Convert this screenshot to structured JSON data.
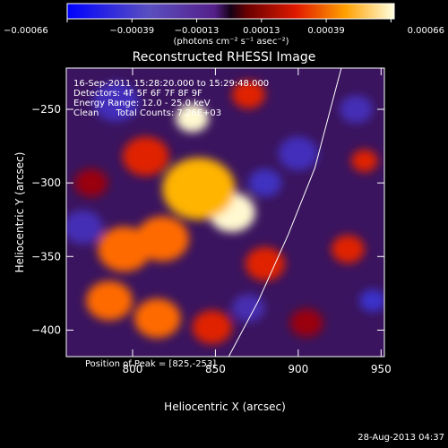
{
  "chart_data": {
    "type": "heatmap",
    "title": "Reconstructed RHESSI Image",
    "xlabel": "Heliocentric X (arcsec)",
    "ylabel": "Heliocentric Y (arcsec)",
    "xlim": [
      760,
      952
    ],
    "ylim": [
      -418,
      -222
    ],
    "xticks": [
      800,
      850,
      900,
      950
    ],
    "yticks": [
      -250,
      -300,
      -350,
      -400
    ],
    "colorbar": {
      "ticks": [
        "-0.00066",
        "-0.00039",
        "-0.00013",
        "0.00013",
        "0.00039",
        "0.00066"
      ],
      "unit_label": "(photons cm⁻² s⁻¹ asec⁻²)",
      "range": [
        -0.00066,
        0.00066
      ]
    },
    "annotations": [
      "16-Sep-2011 15:28:20.000 to 15:29:48.000",
      "Detectors: 4F 5F 6F 7F 8F 9F",
      "Energy Range: 12.0 - 25.0 keV",
      "Clean      Total Counts: 7.26E+03"
    ],
    "peak_label": "Position of Peak = [825,-253]",
    "peak": [
      825,
      -253
    ],
    "limb_points": [
      [
        858,
        -418
      ],
      [
        876,
        -380
      ],
      [
        894,
        -335
      ],
      [
        910,
        -290
      ],
      [
        926,
        -222
      ]
    ],
    "blobs": [
      {
        "x": 860,
        "y": -320,
        "value": 1.0,
        "r": 14
      },
      {
        "x": 836,
        "y": -256,
        "value": 0.95,
        "r": 10
      },
      {
        "x": 840,
        "y": -304,
        "value": 0.75,
        "r": 22
      },
      {
        "x": 808,
        "y": -282,
        "value": 0.55,
        "r": 14
      },
      {
        "x": 795,
        "y": -345,
        "value": 0.7,
        "r": 16
      },
      {
        "x": 818,
        "y": -338,
        "value": 0.6,
        "r": 16
      },
      {
        "x": 786,
        "y": -380,
        "value": 0.6,
        "r": 14
      },
      {
        "x": 815,
        "y": -392,
        "value": 0.7,
        "r": 14
      },
      {
        "x": 848,
        "y": -398,
        "value": 0.55,
        "r": 12
      },
      {
        "x": 880,
        "y": -355,
        "value": 0.45,
        "r": 12
      },
      {
        "x": 930,
        "y": -345,
        "value": 0.45,
        "r": 10
      },
      {
        "x": 940,
        "y": -285,
        "value": 0.55,
        "r": 8
      },
      {
        "x": 870,
        "y": -240,
        "value": 0.5,
        "r": 10
      },
      {
        "x": 775,
        "y": -300,
        "value": 0.35,
        "r": 10
      },
      {
        "x": 905,
        "y": -395,
        "value": 0.35,
        "r": 10
      },
      {
        "x": 900,
        "y": -280,
        "value": -0.35,
        "r": 12
      },
      {
        "x": 790,
        "y": -245,
        "value": -0.35,
        "r": 14
      },
      {
        "x": 880,
        "y": -300,
        "value": -0.4,
        "r": 10
      },
      {
        "x": 770,
        "y": -330,
        "value": -0.3,
        "r": 12
      },
      {
        "x": 945,
        "y": -380,
        "value": -0.5,
        "r": 8
      },
      {
        "x": 935,
        "y": -250,
        "value": -0.3,
        "r": 10
      },
      {
        "x": 870,
        "y": -385,
        "value": -0.25,
        "r": 10
      }
    ]
  },
  "footer": "28-Aug-2013 04:37"
}
